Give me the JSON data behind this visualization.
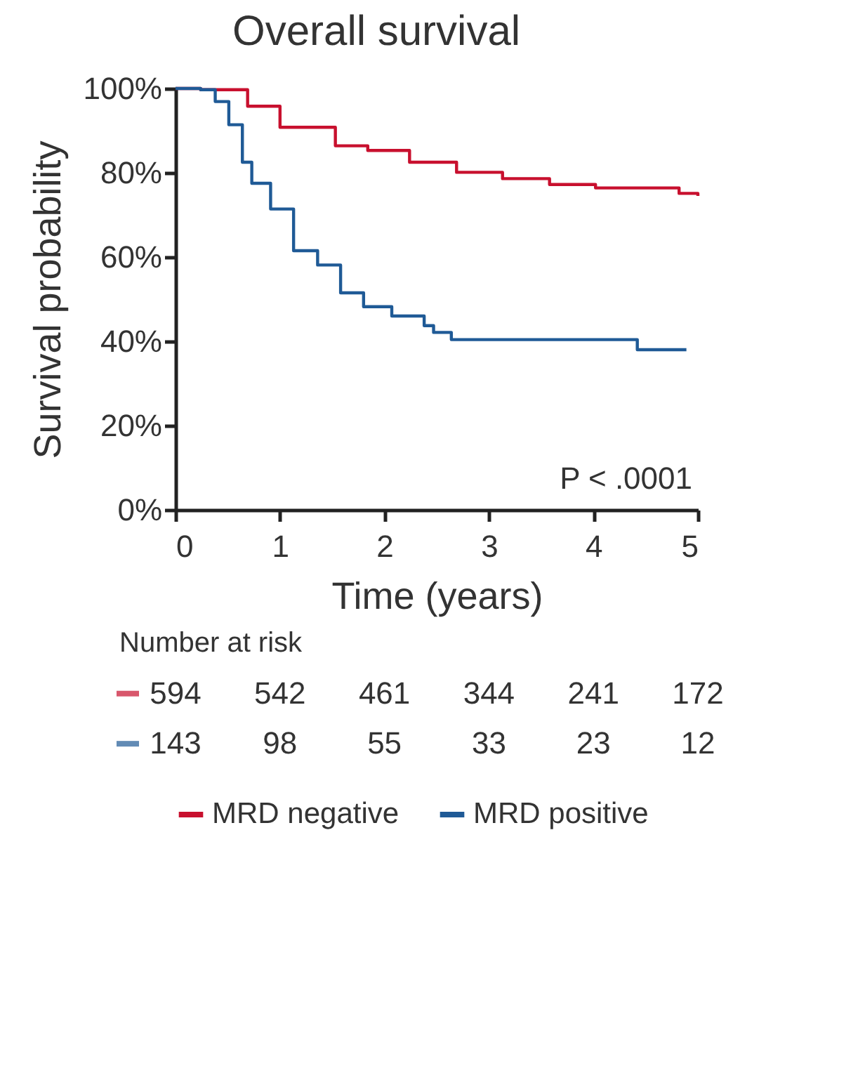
{
  "chart_data": {
    "type": "step",
    "title": "Overall survival",
    "xlabel": "Time (years)",
    "ylabel": "Survival probability",
    "xlim": [
      0,
      5
    ],
    "xticks": [
      0,
      1,
      2,
      3,
      4,
      5
    ],
    "ylim": [
      0,
      100
    ],
    "yticks": [
      {
        "value": 0,
        "label": "0%"
      },
      {
        "value": 20,
        "label": "20%"
      },
      {
        "value": 40,
        "label": "40%"
      },
      {
        "value": 60,
        "label": "60%"
      },
      {
        "value": 80,
        "label": "80%"
      },
      {
        "value": 100,
        "label": "100%"
      }
    ],
    "legend": "bottom",
    "grid": false,
    "annotations": [
      "P < .0001",
      "Number at risk",
      "594 542 461 344 241 172",
      "143 98 55 33 23 12"
    ],
    "series": [
      {
        "name": "MRD negative",
        "color": "#c8102e",
        "x": [
          0,
          0.24,
          0.69,
          1.0,
          1.53,
          1.84,
          2.24,
          2.69,
          3.13,
          3.58,
          4.02,
          4.47,
          4.82,
          5.0
        ],
        "values": [
          100,
          99.7,
          95.8,
          90.8,
          86.4,
          85.3,
          82.5,
          80.1,
          78.6,
          77.2,
          76.4,
          76.4,
          75.1,
          74.5
        ]
      },
      {
        "name": "MRD positive",
        "color": "#1f5a96",
        "x": [
          0,
          0.24,
          0.38,
          0.51,
          0.64,
          0.73,
          0.91,
          1.13,
          1.36,
          1.58,
          1.8,
          2.07,
          2.38,
          2.47,
          2.64,
          4.4,
          4.42,
          4.89
        ],
        "values": [
          100,
          99.7,
          96.9,
          91.4,
          82.5,
          77.5,
          71.4,
          61.5,
          58.1,
          51.5,
          48.2,
          46.0,
          43.7,
          42.1,
          40.4,
          40.4,
          38.0,
          38.0
        ]
      }
    ]
  }
}
